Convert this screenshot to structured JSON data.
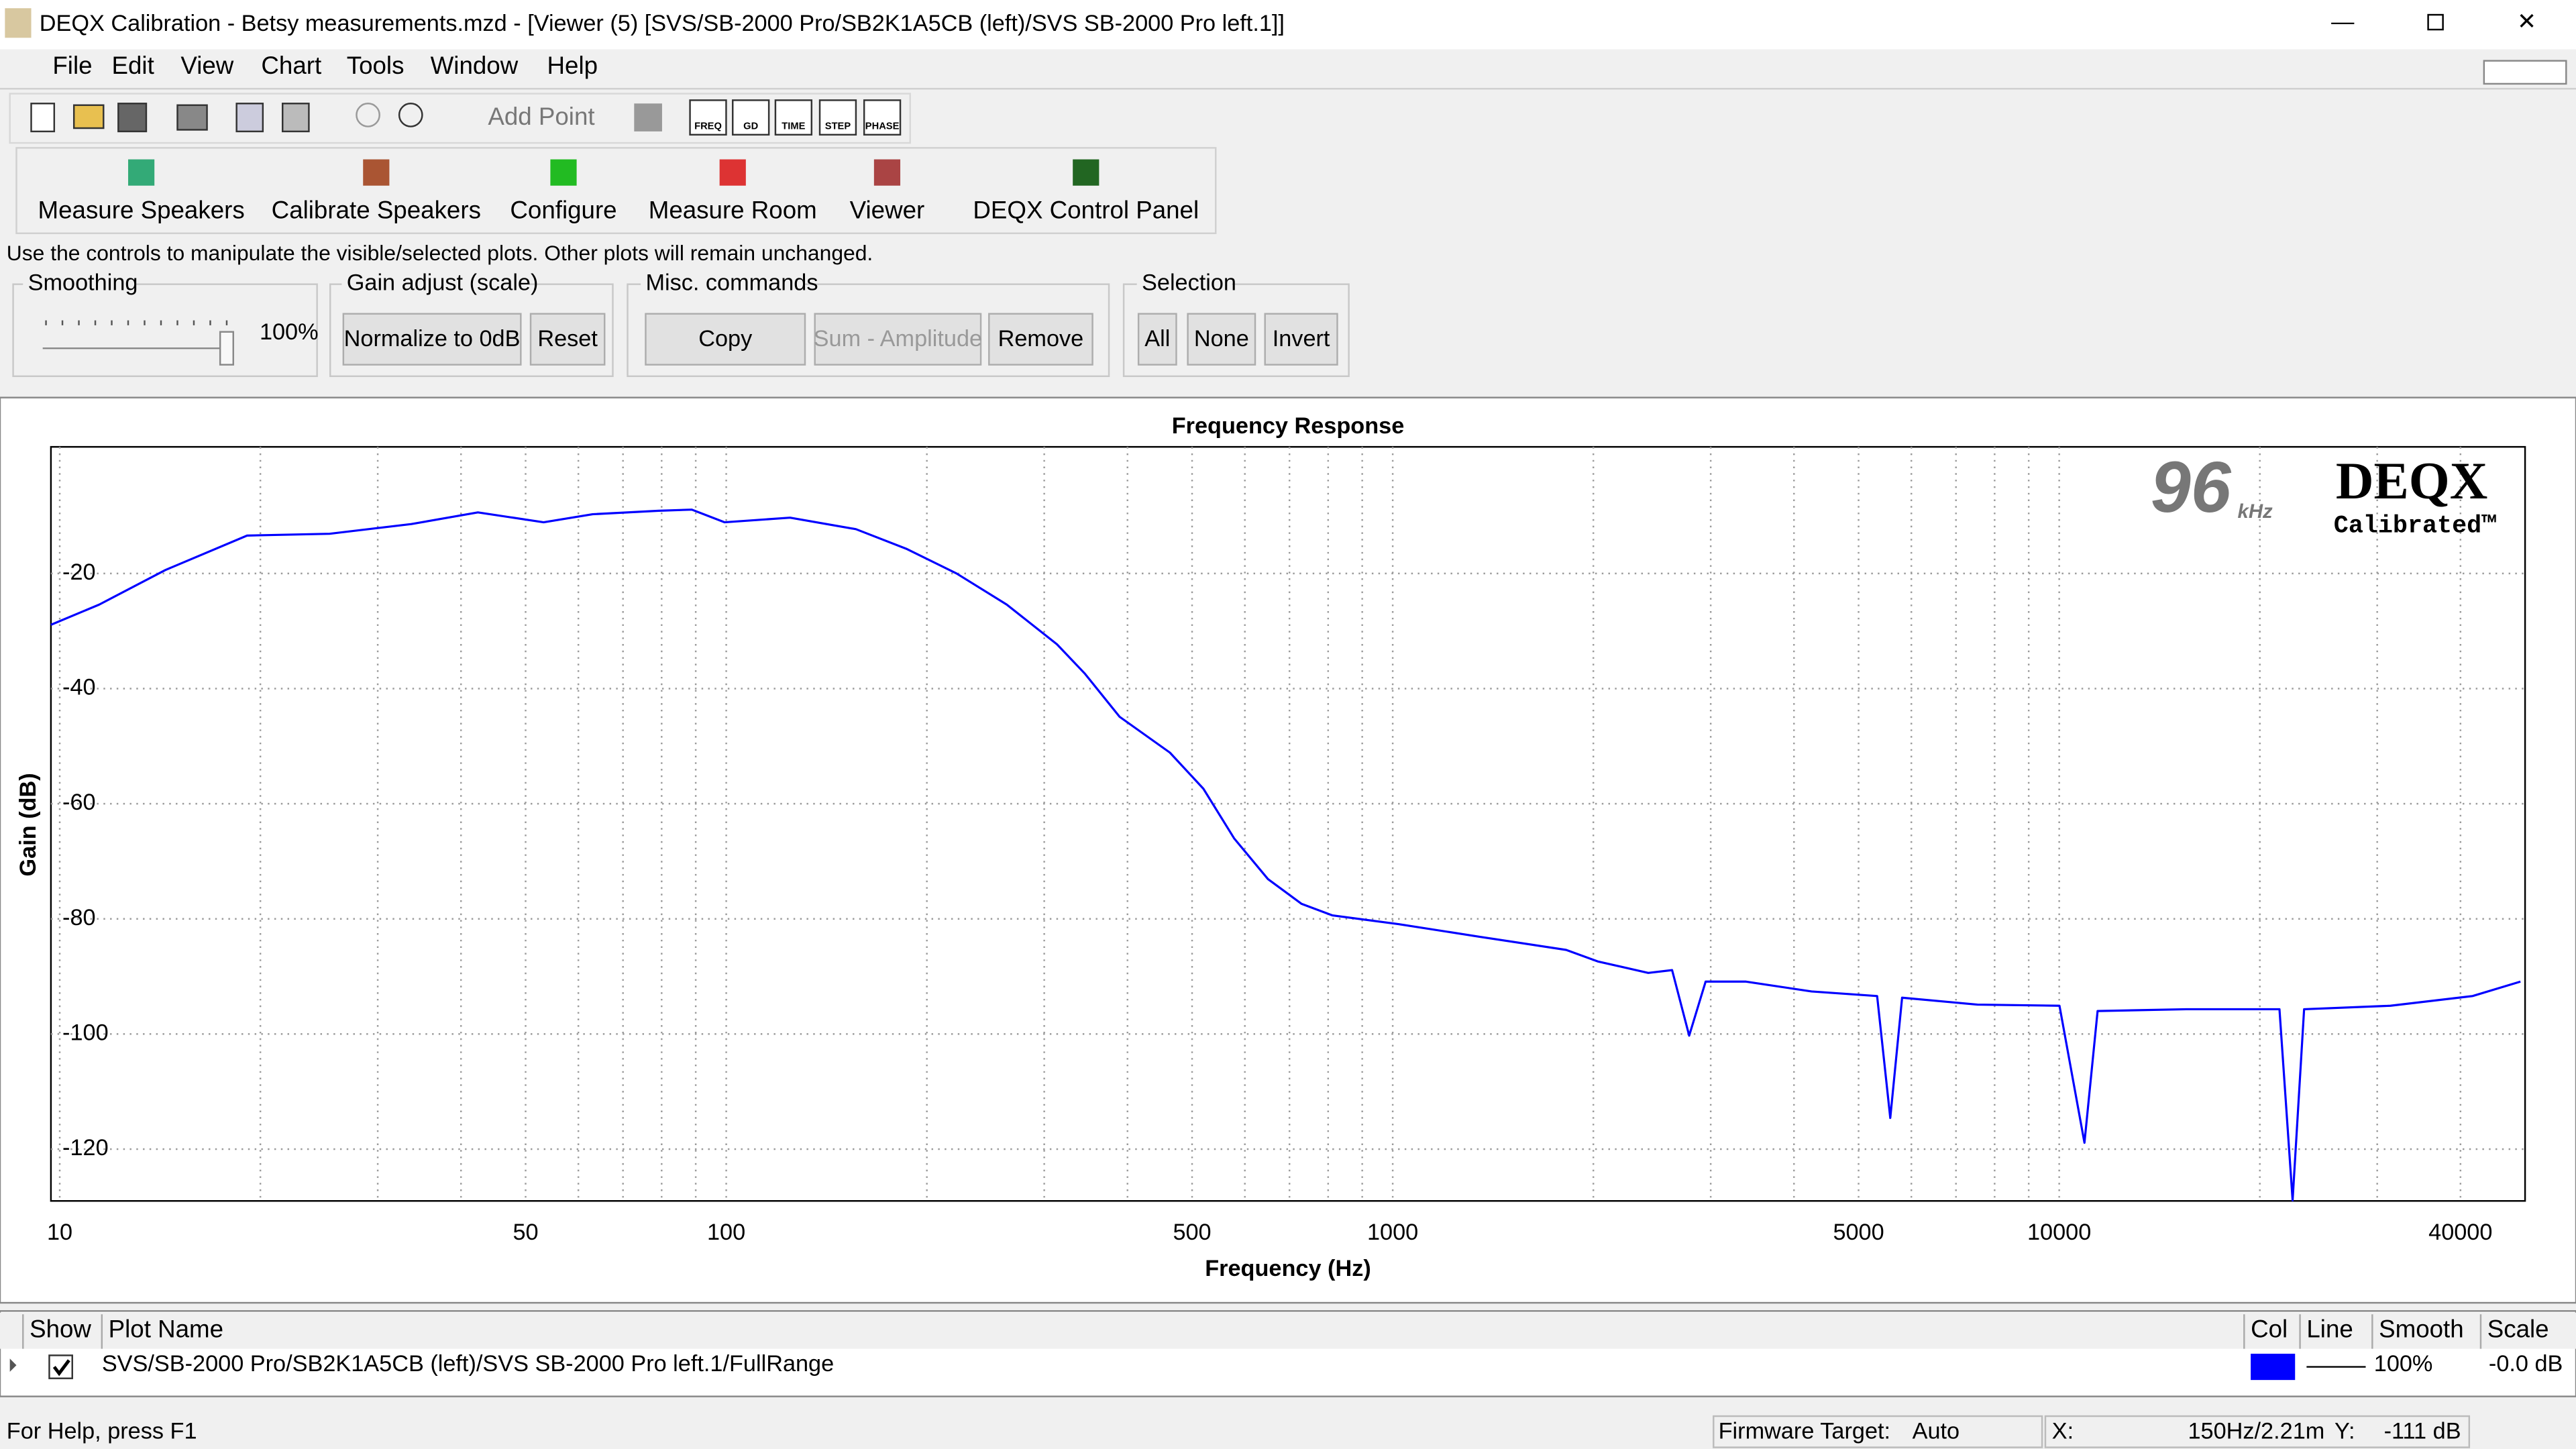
{
  "title_bar": {
    "title": "DEQX Calibration - Betsy measurements.mzd - [Viewer (5) [SVS/SB-2000 Pro/SB2K1A5CB (left)/SVS SB-2000 Pro left.1]]"
  },
  "menu": [
    "File",
    "Edit",
    "View",
    "Chart",
    "Tools",
    "Window",
    "Help"
  ],
  "toolbar": {
    "add_point": "Add Point",
    "views": [
      "FREQ",
      "GD",
      "TIME",
      "STEP",
      "PHASE"
    ]
  },
  "main_buttons": [
    "Measure Speakers",
    "Calibrate Speakers",
    "Configure",
    "Measure Room",
    "Viewer",
    "DEQX Control Panel"
  ],
  "hint": "Use the controls to manipulate the visible/selected plots.  Other plots will remain unchanged.",
  "groups": {
    "smoothing": {
      "label": "Smoothing",
      "value": "100%"
    },
    "gain": {
      "label": "Gain adjust (scale)",
      "buttons": [
        "Normalize to 0dB",
        "Reset"
      ]
    },
    "misc": {
      "label": "Misc. commands",
      "buttons": [
        "Copy",
        "Sum - Amplitude",
        "Remove"
      ]
    },
    "selection": {
      "label": "Selection",
      "buttons": [
        "All",
        "None",
        "Invert"
      ]
    }
  },
  "logo": {
    "rate": "96",
    "unit": "kHz",
    "brand": "DEQX",
    "sub": "Calibrated™"
  },
  "chart_data": {
    "type": "line",
    "title": "Frequency Response",
    "x_label": "Frequency (Hz)",
    "y_label": "Gain (dB)",
    "x_scale": "log",
    "grid": true,
    "xlim": [
      9.7,
      50000
    ],
    "ylim": [
      -129,
      2
    ],
    "xticks": [
      10,
      50,
      100,
      500,
      1000,
      5000,
      10000,
      40000
    ],
    "xminor_ticks": [
      20,
      30,
      40,
      60,
      70,
      80,
      90,
      200,
      300,
      400,
      600,
      700,
      800,
      900,
      2000,
      3000,
      4000,
      6000,
      7000,
      8000,
      9000,
      20000,
      30000
    ],
    "yticks": [
      -20,
      -40,
      -60,
      -80,
      -100,
      -120
    ],
    "x": [
      9.7,
      11.46,
      14.4,
      19.1,
      25.4,
      33.7,
      42.4,
      53.2,
      63,
      79.2,
      88.8,
      99.4,
      124.7,
      156.5,
      186.2,
      221.6,
      263.6,
      313.6,
      345.3,
      389.2,
      463,
      519.9,
      578,
      650,
      730,
      812,
      1020,
      1350,
      1820,
      2030,
      2418,
      2626,
      2785,
      2948,
      3390,
      4251,
      5330,
      5578,
      5810,
      7540,
      10010,
      10910,
      11420,
      15500,
      21400,
      22400,
      23300,
      31400,
      41700,
      49200
    ],
    "series": [
      {
        "name": "SVS/SB-2000 Pro/SB2K1A5CB (left)/SVS SB-2000 Pro left.1/FullRange",
        "color": "#0000ff",
        "values": [
          -28.9,
          -25.4,
          -19.4,
          -13.4,
          -13.1,
          -11.4,
          -9.4,
          -11.1,
          -9.7,
          -9.1,
          -8.9,
          -11.1,
          -10.3,
          -12.3,
          -15.7,
          -20,
          -25.4,
          -32.3,
          -37.4,
          -44.9,
          -51.1,
          -57.4,
          -66,
          -73.1,
          -77.4,
          -79.4,
          -80.9,
          -83.1,
          -85.4,
          -87.4,
          -89.4,
          -88.9,
          -100.3,
          -90.9,
          -90.9,
          -92.6,
          -93.4,
          -114.6,
          -93.7,
          -94.9,
          -95.1,
          -118.9,
          -96,
          -95.7,
          -95.7,
          -128.9,
          -95.7,
          -95.1,
          -93.4,
          -90.9
        ]
      }
    ]
  },
  "plot_table": {
    "columns": [
      "Show",
      "Plot Name",
      "Col",
      "Line",
      "Smooth",
      "Scale"
    ],
    "smooth": "100%",
    "scale": "-0.0 dB"
  },
  "status_bar": {
    "help": "For Help, press F1",
    "firmware_label": "Firmware Target:",
    "firmware": "Auto",
    "x_label": "X:",
    "x": "150Hz/2.21m",
    "y_label": "Y:",
    "y": "-111 dB"
  }
}
